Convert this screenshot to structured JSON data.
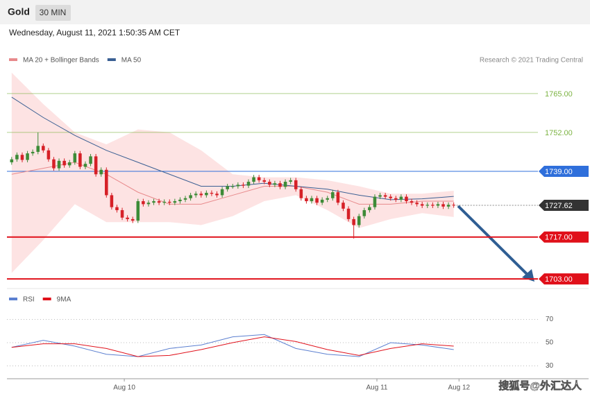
{
  "header": {
    "title": "Gold",
    "interval": "30 MIN",
    "datetime": "Wednesday, August 11, 2021 1:50:35 AM CET"
  },
  "watermark": "搜狐号@外汇达人",
  "chart_data": [
    {
      "type": "candlestick",
      "source": "Research © 2021 Trading Central",
      "up_color": "#3d8b37",
      "down_color": "#d62027",
      "xlim": [
        -0.9,
        100
      ],
      "ylim": [
        1700.7,
        1773.1
      ],
      "x": [
        0,
        1,
        2,
        3,
        4,
        5,
        6,
        7,
        8,
        9,
        10,
        11,
        12,
        13,
        14,
        15,
        16,
        17,
        18,
        19,
        20,
        21,
        22,
        23,
        24,
        25,
        26,
        27,
        28,
        29,
        30,
        31,
        32,
        33,
        34,
        35,
        36,
        37,
        38,
        39,
        40,
        41,
        42,
        43,
        44,
        45,
        46,
        47,
        48,
        49,
        50,
        51,
        52,
        53,
        54,
        55,
        56,
        57,
        58,
        59,
        60,
        61,
        62,
        63,
        64,
        65,
        66,
        67,
        68,
        69,
        70,
        71,
        72,
        73,
        74,
        75,
        76,
        77,
        78,
        79,
        80,
        81,
        82,
        83,
        84
      ],
      "open": [
        1742.0,
        1743.0,
        1744.5,
        1742.8,
        1745.0,
        1745.5,
        1747.5,
        1746.0,
        1743.0,
        1740.0,
        1742.5,
        1741.0,
        1742.0,
        1745.0,
        1740.5,
        1741.5,
        1744.0,
        1738.0,
        1739.5,
        1731.0,
        1727.0,
        1726.0,
        1723.5,
        1723.0,
        1722.5,
        1729.0,
        1728.0,
        1728.5,
        1729.0,
        1728.5,
        1728.8,
        1728.5,
        1729.0,
        1729.5,
        1730.0,
        1731.0,
        1731.5,
        1731.0,
        1731.8,
        1731.5,
        1731.0,
        1733.0,
        1734.0,
        1734.0,
        1734.5,
        1734.2,
        1735.5,
        1737.0,
        1736.0,
        1735.5,
        1734.5,
        1735.0,
        1733.8,
        1735.5,
        1736.0,
        1733.0,
        1730.0,
        1729.0,
        1730.0,
        1728.5,
        1729.5,
        1730.0,
        1732.0,
        1728.5,
        1726.5,
        1723.0,
        1721.0,
        1724.0,
        1726.0,
        1727.0,
        1730.5,
        1731.0,
        1730.5,
        1730.0,
        1729.5,
        1730.5,
        1729.0,
        1728.5,
        1728.0,
        1727.5,
        1727.8,
        1727.5,
        1728.0,
        1727.2,
        1727.8
      ],
      "high": [
        1743.8,
        1745.3,
        1745.3,
        1745.8,
        1746.3,
        1752.0,
        1748.3,
        1746.8,
        1743.8,
        1743.3,
        1743.3,
        1742.8,
        1745.8,
        1745.8,
        1742.3,
        1744.8,
        1744.8,
        1740.3,
        1740.3,
        1731.8,
        1727.8,
        1726.8,
        1724.3,
        1723.8,
        1729.8,
        1729.8,
        1729.3,
        1729.8,
        1729.8,
        1729.6,
        1729.6,
        1729.8,
        1730.3,
        1730.8,
        1731.8,
        1732.3,
        1732.3,
        1732.6,
        1732.6,
        1732.3,
        1733.8,
        1734.8,
        1734.8,
        1735.3,
        1735.3,
        1736.3,
        1737.8,
        1737.8,
        1736.8,
        1736.3,
        1735.8,
        1735.8,
        1736.3,
        1736.8,
        1736.8,
        1733.8,
        1730.8,
        1730.8,
        1730.8,
        1730.3,
        1730.8,
        1732.8,
        1732.8,
        1729.3,
        1727.3,
        1723.8,
        1724.8,
        1726.8,
        1727.8,
        1731.3,
        1731.8,
        1731.8,
        1731.3,
        1730.8,
        1731.3,
        1731.3,
        1729.8,
        1729.3,
        1728.8,
        1728.6,
        1728.6,
        1728.8,
        1728.8,
        1728.6,
        1728.6
      ],
      "low": [
        1741.2,
        1742.2,
        1742.0,
        1742.0,
        1744.2,
        1744.7,
        1745.2,
        1742.2,
        1739.2,
        1739.2,
        1740.2,
        1740.2,
        1741.2,
        1739.7,
        1739.7,
        1740.7,
        1737.2,
        1737.2,
        1730.2,
        1726.2,
        1725.2,
        1722.7,
        1722.2,
        1721.7,
        1721.7,
        1727.2,
        1727.2,
        1727.7,
        1727.7,
        1727.7,
        1727.7,
        1727.7,
        1728.2,
        1728.7,
        1729.2,
        1730.2,
        1730.2,
        1730.2,
        1730.7,
        1730.2,
        1730.2,
        1732.2,
        1733.2,
        1733.2,
        1733.4,
        1733.4,
        1734.7,
        1735.2,
        1734.7,
        1733.7,
        1733.7,
        1733.0,
        1733.0,
        1734.7,
        1732.2,
        1729.2,
        1728.2,
        1728.2,
        1727.7,
        1727.7,
        1728.7,
        1729.2,
        1727.7,
        1725.7,
        1722.2,
        1716.5,
        1720.2,
        1723.2,
        1725.2,
        1726.2,
        1729.7,
        1729.7,
        1729.2,
        1728.7,
        1728.7,
        1728.2,
        1727.7,
        1727.2,
        1726.7,
        1726.7,
        1726.7,
        1726.7,
        1726.4,
        1726.4,
        1726.8
      ],
      "close": [
        1743.0,
        1744.5,
        1742.8,
        1745.0,
        1745.5,
        1747.5,
        1746.0,
        1743.0,
        1740.0,
        1742.5,
        1741.0,
        1742.0,
        1745.0,
        1740.5,
        1741.5,
        1744.0,
        1738.0,
        1739.5,
        1731.0,
        1727.0,
        1726.0,
        1723.5,
        1723.0,
        1722.5,
        1729.0,
        1728.0,
        1728.5,
        1729.0,
        1728.5,
        1728.8,
        1728.5,
        1729.0,
        1729.5,
        1730.0,
        1731.0,
        1731.5,
        1731.0,
        1731.8,
        1731.5,
        1731.0,
        1733.0,
        1734.0,
        1734.0,
        1734.5,
        1734.2,
        1735.5,
        1737.0,
        1736.0,
        1735.5,
        1734.5,
        1735.0,
        1733.8,
        1735.5,
        1736.0,
        1733.0,
        1730.0,
        1729.0,
        1730.0,
        1728.5,
        1729.5,
        1730.0,
        1732.0,
        1728.5,
        1726.5,
        1723.0,
        1721.0,
        1724.0,
        1726.0,
        1727.0,
        1730.5,
        1731.0,
        1730.5,
        1730.0,
        1729.5,
        1730.5,
        1729.0,
        1728.5,
        1728.0,
        1727.5,
        1727.8,
        1727.5,
        1728.0,
        1727.2,
        1727.8,
        1727.6
      ],
      "series": [
        {
          "name": "MA 20 + Bollinger Bands",
          "color": "#e88a8c",
          "band_color": "#fde3e3",
          "x": [
            0,
            6,
            12,
            18,
            24,
            30,
            36,
            42,
            48,
            54,
            60,
            66,
            72,
            78,
            84
          ],
          "values": [
            1738,
            1740,
            1742,
            1738,
            1732,
            1728,
            1728,
            1731,
            1734,
            1734,
            1732,
            1728,
            1728,
            1729,
            1729
          ],
          "upper": [
            1772,
            1761.5,
            1752,
            1748,
            1753,
            1752,
            1746,
            1738,
            1737,
            1737,
            1736,
            1734,
            1731.5,
            1731.5,
            1732.5
          ],
          "lower": [
            1705,
            1716,
            1728,
            1722,
            1722,
            1722,
            1721,
            1724,
            1729,
            1731,
            1726,
            1720,
            1723,
            1725,
            1723.7
          ]
        },
        {
          "name": "MA 50",
          "color": "#3a5f93",
          "x": [
            0,
            6,
            12,
            18,
            24,
            30,
            36,
            42,
            48,
            54,
            60,
            66,
            72,
            78,
            84
          ],
          "values": [
            1763.8,
            1757,
            1751,
            1746,
            1742,
            1738,
            1734,
            1734,
            1735,
            1734,
            1733,
            1731,
            1729.5,
            1729.8,
            1730.6
          ]
        }
      ],
      "levels": [
        {
          "value": 1765,
          "label": "1765.00",
          "color": "#7cb342",
          "tag": false
        },
        {
          "value": 1752,
          "label": "1752.00",
          "color": "#7cb342",
          "tag": false
        },
        {
          "value": 1739,
          "label": "1739.00",
          "color": "#2f6fdb",
          "tag": true
        },
        {
          "value": 1727.62,
          "color": "#333333",
          "tag": true,
          "current": true
        },
        {
          "value": 1717,
          "label": "1717.00",
          "color": "#e0101a",
          "tag": true
        },
        {
          "value": 1703,
          "label": "1703.00",
          "color": "#e0101a",
          "tag": true
        }
      ]
    },
    {
      "type": "line",
      "xlim": [
        -0.9,
        100
      ],
      "ylim": [
        22.5,
        79.3
      ],
      "yticks": [
        70,
        50,
        30
      ],
      "xticks": [
        {
          "value": 21.4,
          "label": "Aug 10"
        },
        {
          "value": 69.4,
          "label": "Aug 11"
        },
        {
          "value": 85.0,
          "label": "Aug 12"
        }
      ],
      "series": [
        {
          "name": "RSI",
          "color": "#5b7fd0",
          "x": [
            0,
            6,
            12,
            18,
            24,
            30,
            36,
            42,
            48,
            54,
            60,
            66,
            72,
            78,
            84
          ],
          "values": [
            46,
            52,
            47,
            40,
            38,
            45,
            48,
            55,
            57,
            45,
            40,
            38,
            50,
            48,
            44
          ]
        },
        {
          "name": "9MA",
          "color": "#e0101a",
          "x": [
            0,
            6,
            12,
            18,
            24,
            30,
            36,
            42,
            48,
            54,
            60,
            66,
            72,
            78,
            84
          ],
          "values": [
            46,
            49,
            49,
            45,
            38,
            39,
            44,
            50,
            55,
            51,
            44,
            39,
            45,
            49,
            47
          ]
        }
      ]
    }
  ]
}
